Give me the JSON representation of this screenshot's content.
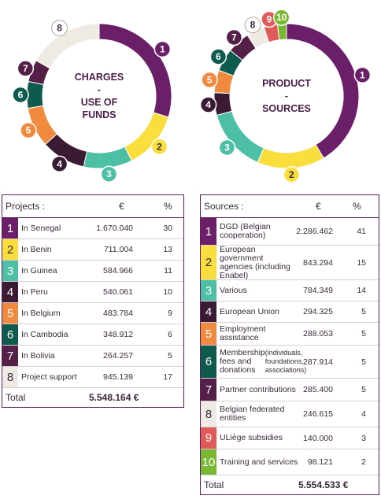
{
  "colors": [
    "#6b1f68",
    "#f9de3e",
    "#4dbfa4",
    "#3a1b33",
    "#ef8a3e",
    "#0e5a4d",
    "#552048",
    "#efebe4",
    "#e05a5a",
    "#78b832"
  ],
  "chart_data": [
    {
      "type": "pie",
      "title": "CHARGES - USE OF FUNDS",
      "categories": [
        "1",
        "2",
        "3",
        "4",
        "5",
        "6",
        "7",
        "8"
      ],
      "values": [
        30,
        13,
        11,
        10,
        9,
        6,
        5,
        17
      ]
    },
    {
      "type": "pie",
      "title": "PRODUCT - SOURCES",
      "categories": [
        "1",
        "2",
        "3",
        "4",
        "5",
        "6",
        "7",
        "8",
        "9",
        "10"
      ],
      "values": [
        41,
        15,
        14,
        5,
        5,
        5,
        5,
        4,
        3,
        2
      ]
    }
  ],
  "donut_titles": [
    [
      "CHARGES",
      "-",
      "USE OF",
      "FUNDS"
    ],
    [
      "PRODUCT",
      "-",
      "SOURCES"
    ]
  ],
  "projects": {
    "header": "Projects :",
    "currency": "€",
    "pct": "%",
    "rows": [
      {
        "n": "1",
        "label": "In Senegal",
        "amount": "1.670.040",
        "pct": "30"
      },
      {
        "n": "2",
        "label": "In Benin",
        "amount": "711.004",
        "pct": "13"
      },
      {
        "n": "3",
        "label": "In Guinea",
        "amount": "584.966",
        "pct": "11"
      },
      {
        "n": "4",
        "label": "In Peru",
        "amount": "540.061",
        "pct": "10"
      },
      {
        "n": "5",
        "label": "In Belgium",
        "amount": "483.784",
        "pct": "9"
      },
      {
        "n": "6",
        "label": "In Cambodia",
        "amount": "348.912",
        "pct": "6"
      },
      {
        "n": "7",
        "label": "In Bolivia",
        "amount": "264.257",
        "pct": "5"
      },
      {
        "n": "8",
        "label": "Project support",
        "amount": "945.139",
        "pct": "17"
      }
    ],
    "total_label": "Total",
    "total_value": "5.548.164 €"
  },
  "sources": {
    "header": "Sources :",
    "currency": "€",
    "pct": "%",
    "rows": [
      {
        "n": "1",
        "label": "DGD (Belgian cooperation)",
        "amount": "2.286.462",
        "pct": "41"
      },
      {
        "n": "2",
        "label": "European government agencies (including Enabel)",
        "amount": "843.294",
        "pct": "15"
      },
      {
        "n": "3",
        "label": "Various",
        "amount": "784.349",
        "pct": "14"
      },
      {
        "n": "4",
        "label": "European Union",
        "amount": "294.325",
        "pct": "5"
      },
      {
        "n": "5",
        "label": "Employment assistance",
        "amount": "288.053",
        "pct": "5"
      },
      {
        "n": "6",
        "label": "Membership fees and donations",
        "sub": "(individuals, foundations, associations)",
        "amount": "287.914",
        "pct": "5"
      },
      {
        "n": "7",
        "label": "Partner contributions",
        "amount": "285.400",
        "pct": "5"
      },
      {
        "n": "8",
        "label": "Belgian federated entities",
        "amount": "246.615",
        "pct": "4"
      },
      {
        "n": "9",
        "label": "ULiège subsidies",
        "amount": "140.000",
        "pct": "3"
      },
      {
        "n": "10",
        "label": "Training and services",
        "amount": "98.121",
        "pct": "2"
      }
    ],
    "total_label": "Total",
    "total_value": "5.554.533 €"
  }
}
